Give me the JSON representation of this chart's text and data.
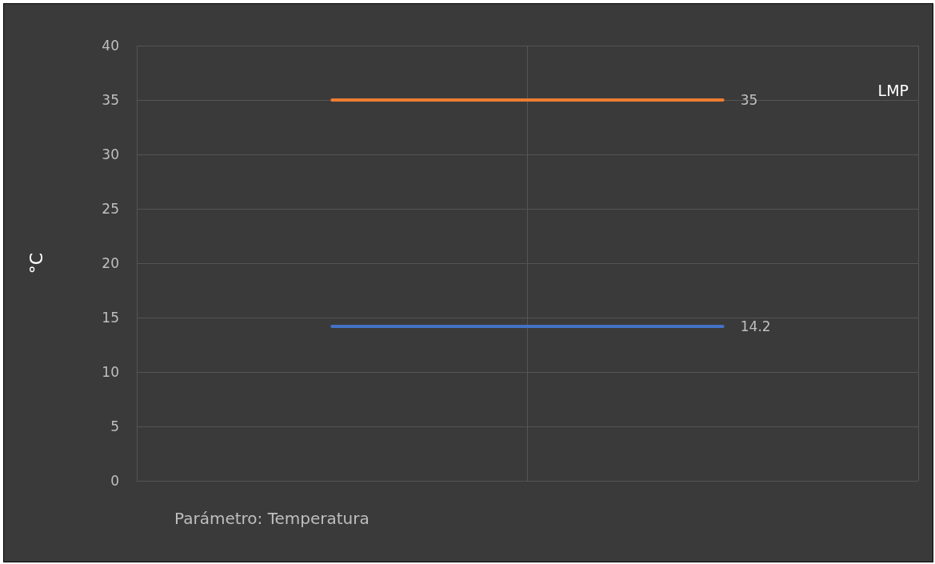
{
  "chart_data": {
    "type": "line",
    "xlabel": "Parámetro: Temperatura",
    "ylabel": "°C",
    "categories": [
      null,
      null
    ],
    "series": [
      {
        "name": "LMP",
        "color": "#ed7d31",
        "values": [
          35,
          35
        ],
        "value_labels": [
          null,
          "35"
        ]
      },
      {
        "color": "#4472c4",
        "values": [
          14.2,
          14.2
        ],
        "value_labels": [
          null,
          "14.2"
        ]
      }
    ],
    "ylim": [
      0,
      40
    ],
    "yticks": [
      0,
      5,
      10,
      15,
      20,
      25,
      30,
      35,
      40
    ],
    "grid": true,
    "legend": false,
    "marker": "none",
    "line_style": "solid"
  }
}
